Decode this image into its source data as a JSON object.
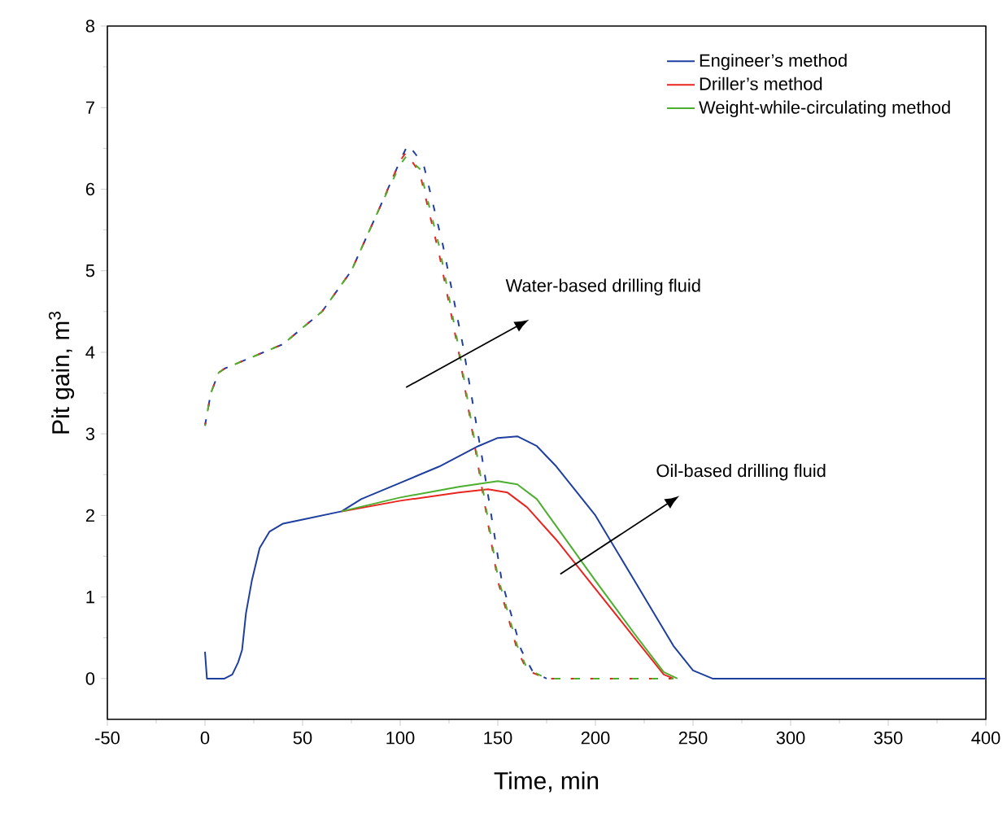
{
  "chart_data": {
    "type": "line",
    "xlabel": "Time, min",
    "ylabel": "Pit gain, m$^{3}$",
    "xlim": [
      -50,
      400
    ],
    "ylim": [
      -0.5,
      8
    ],
    "xticks": [
      -50,
      0,
      50,
      100,
      150,
      200,
      250,
      300,
      350,
      400
    ],
    "yticks": [
      0,
      1,
      2,
      3,
      4,
      5,
      6,
      7,
      8
    ],
    "legend": "top right",
    "marker": "none",
    "annotations": [
      "Water-based drilling fluid",
      "Oil-based drilling fluid"
    ],
    "series": [
      {
        "name": "Engineer’s method",
        "color": "#1f3f9f",
        "line_style": "solid",
        "x": [
          0,
          1,
          10,
          14,
          17,
          19,
          21,
          24,
          28,
          33,
          40,
          50,
          70,
          80,
          100,
          120,
          140,
          150,
          160,
          170,
          180,
          200,
          220,
          240,
          250,
          260,
          400
        ],
        "values": [
          0.33,
          0,
          0,
          0.05,
          0.2,
          0.35,
          0.8,
          1.2,
          1.6,
          1.8,
          1.9,
          1.95,
          2.05,
          2.2,
          2.4,
          2.6,
          2.85,
          2.95,
          2.97,
          2.85,
          2.6,
          2.0,
          1.2,
          0.4,
          0.1,
          0,
          0
        ]
      },
      {
        "name": "Driller’s method",
        "color": "#e8251f",
        "line_style": "solid",
        "x": [
          70,
          100,
          130,
          145,
          155,
          165,
          180,
          200,
          220,
          235,
          240
        ],
        "values": [
          2.05,
          2.18,
          2.28,
          2.32,
          2.28,
          2.1,
          1.7,
          1.1,
          0.5,
          0.05,
          0
        ]
      },
      {
        "name": "Weight-while-circulating method",
        "color": "#4caf2f",
        "line_style": "solid",
        "x": [
          70,
          100,
          130,
          150,
          160,
          170,
          185,
          200,
          220,
          235,
          242
        ],
        "values": [
          2.05,
          2.22,
          2.35,
          2.42,
          2.38,
          2.2,
          1.7,
          1.2,
          0.55,
          0.08,
          0
        ]
      },
      {
        "color": "#1f3f9f",
        "line_style": "dashed",
        "x": [
          0,
          3,
          7,
          10,
          20,
          40,
          60,
          75,
          90,
          100,
          104,
          112,
          122,
          132,
          142,
          152,
          162,
          168,
          175
        ],
        "values": [
          3.1,
          3.5,
          3.75,
          3.8,
          3.9,
          4.1,
          4.5,
          5.0,
          5.8,
          6.35,
          6.55,
          6.3,
          5.3,
          4.1,
          2.7,
          1.2,
          0.35,
          0.08,
          0
        ]
      },
      {
        "color": "#e8251f",
        "line_style": "dashed",
        "x": [
          0,
          3,
          7,
          10,
          20,
          40,
          60,
          75,
          90,
          100,
          103,
          110,
          120,
          130,
          140,
          150,
          160,
          165,
          175,
          240
        ],
        "values": [
          3.1,
          3.5,
          3.75,
          3.8,
          3.9,
          4.1,
          4.5,
          5.0,
          5.8,
          6.35,
          6.45,
          6.2,
          5.2,
          4.0,
          2.6,
          1.2,
          0.35,
          0.1,
          0,
          0
        ]
      },
      {
        "color": "#4caf2f",
        "line_style": "dashed",
        "x": [
          0,
          3,
          7,
          10,
          20,
          40,
          60,
          75,
          90,
          100,
          103,
          110,
          120,
          130,
          140,
          150,
          160,
          165,
          175,
          240
        ],
        "values": [
          3.1,
          3.5,
          3.75,
          3.8,
          3.9,
          4.1,
          4.5,
          5.0,
          5.8,
          6.3,
          6.4,
          6.25,
          5.3,
          4.05,
          2.65,
          1.25,
          0.4,
          0.12,
          0,
          0
        ]
      }
    ]
  }
}
